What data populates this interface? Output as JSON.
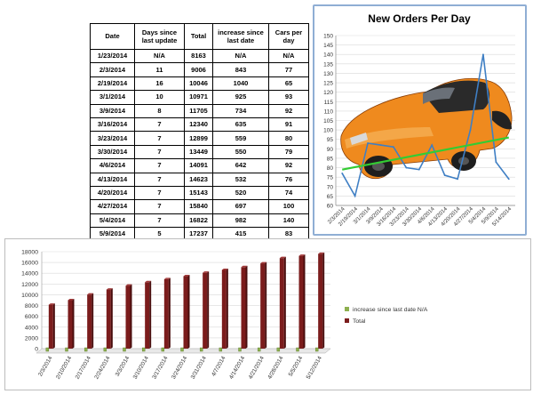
{
  "table": {
    "headers": [
      "Date",
      "Days since last update",
      "Total",
      "increase since last date",
      "Cars per day"
    ],
    "header_lines": [
      [
        "Date"
      ],
      [
        "Days since",
        "last update"
      ],
      [
        "Total"
      ],
      [
        "increase since",
        "last date"
      ],
      [
        "Cars per",
        "day"
      ]
    ],
    "rows": [
      [
        "1/23/2014",
        "N/A",
        "8163",
        "N/A",
        "N/A"
      ],
      [
        "2/3/2014",
        "11",
        "9006",
        "843",
        "77"
      ],
      [
        "2/19/2014",
        "16",
        "10046",
        "1040",
        "65"
      ],
      [
        "3/1/2014",
        "10",
        "10971",
        "925",
        "93"
      ],
      [
        "3/9/2014",
        "8",
        "11705",
        "734",
        "92"
      ],
      [
        "3/16/2014",
        "7",
        "12340",
        "635",
        "91"
      ],
      [
        "3/23/2014",
        "7",
        "12899",
        "559",
        "80"
      ],
      [
        "3/30/2014",
        "7",
        "13449",
        "550",
        "79"
      ],
      [
        "4/6/2014",
        "7",
        "14091",
        "642",
        "92"
      ],
      [
        "4/13/2014",
        "7",
        "14623",
        "532",
        "76"
      ],
      [
        "4/20/2014",
        "7",
        "15143",
        "520",
        "74"
      ],
      [
        "4/27/2014",
        "7",
        "15840",
        "697",
        "100"
      ],
      [
        "5/4/2014",
        "7",
        "16822",
        "982",
        "140"
      ],
      [
        "5/9/2014",
        "5",
        "17237",
        "415",
        "83"
      ],
      [
        "5/14/2014",
        "5",
        "17607",
        "370",
        "74"
      ]
    ]
  },
  "chart_data": [
    {
      "type": "line",
      "title": "New Orders Per Day",
      "x": [
        "2/3/2014",
        "2/19/2014",
        "3/1/2014",
        "3/9/2014",
        "3/16/2014",
        "3/23/2014",
        "3/30/2014",
        "4/6/2014",
        "4/13/2014",
        "4/20/2014",
        "4/27/2014",
        "5/4/2014",
        "5/9/2014",
        "5/14/2014"
      ],
      "series": [
        {
          "values": [
            77,
            65,
            93,
            92,
            91,
            80,
            79,
            92,
            76,
            74,
            100,
            140,
            83,
            74
          ]
        }
      ],
      "trendline": {
        "start": 79,
        "end": 96
      },
      "ylim": [
        60,
        150
      ],
      "yticks": [
        60,
        65,
        70,
        75,
        80,
        85,
        90,
        95,
        100,
        105,
        110,
        115,
        120,
        125,
        130,
        135,
        140,
        145,
        150
      ],
      "grid": true,
      "background_image": "orange-three-wheel-car"
    },
    {
      "type": "bar",
      "categories": [
        "2/3/2014",
        "2/10/2014",
        "2/17/2014",
        "2/24/2014",
        "3/3/2014",
        "3/10/2014",
        "3/17/2014",
        "3/24/2014",
        "3/31/2014",
        "4/7/2014",
        "4/14/2014",
        "4/21/2014",
        "4/28/2014",
        "5/5/2014",
        "5/12/2014"
      ],
      "series": [
        {
          "name": "increase since last date N/A",
          "values": [
            0,
            0,
            0,
            0,
            0,
            0,
            0,
            0,
            0,
            0,
            0,
            0,
            0,
            0,
            0
          ],
          "color": "#8db04f"
        },
        {
          "name": "Total",
          "values": [
            8163,
            9006,
            10046,
            10971,
            11705,
            12340,
            12899,
            13449,
            14091,
            14623,
            15143,
            15840,
            16822,
            17237,
            17607
          ],
          "color": "#7b1c1c"
        }
      ],
      "ylim": [
        0,
        18000
      ],
      "yticks": [
        0,
        2000,
        4000,
        6000,
        8000,
        10000,
        12000,
        14000,
        16000,
        18000
      ],
      "legend": "right",
      "grid": true
    }
  ],
  "colors": {
    "line": "#3f7fc4",
    "trend": "#33cc33",
    "bar": "#7b1c1c",
    "bar_small": "#8db04f",
    "panel_border": "#8faed4"
  }
}
